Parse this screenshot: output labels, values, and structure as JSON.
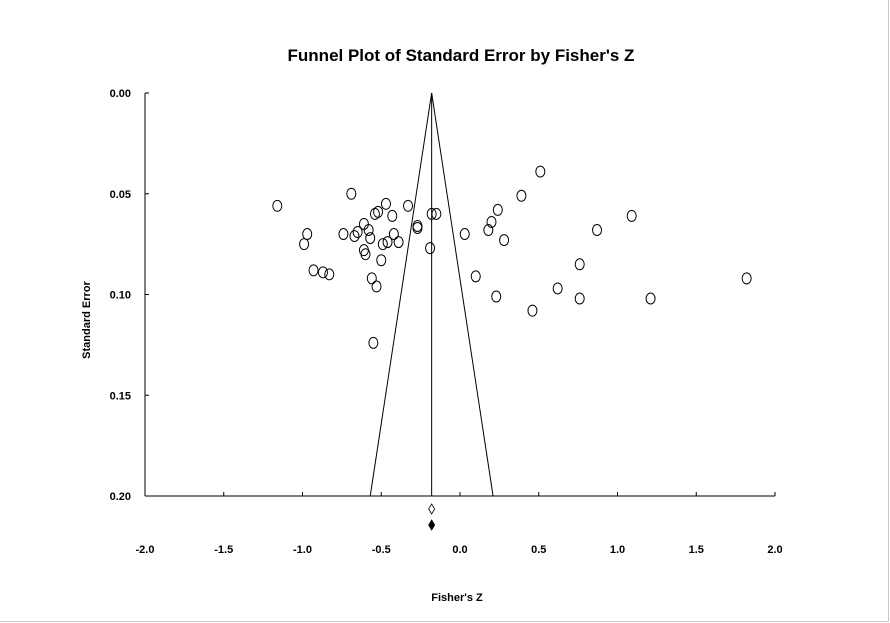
{
  "chart_data": {
    "type": "scatter",
    "title": "Funnel Plot of Standard Error by Fisher's Z",
    "xlabel": "Fisher's Z",
    "ylabel": "Standard Error",
    "xlim": [
      -2.0,
      2.0
    ],
    "ylim": [
      0.0,
      0.2
    ],
    "y_inverted": true,
    "x_ticks": [
      "-2.0",
      "-1.5",
      "-1.0",
      "-0.5",
      "0.0",
      "0.5",
      "1.0",
      "1.5",
      "2.0"
    ],
    "y_ticks": [
      "0.00",
      "0.05",
      "0.10",
      "0.15",
      "0.20"
    ],
    "summary_effect": -0.18,
    "funnel_limits_at_bottom": [
      -0.57,
      0.21
    ],
    "observed_summary_marker": -0.18,
    "adjusted_summary_marker": -0.18,
    "points": [
      {
        "x": -1.16,
        "y": 0.056
      },
      {
        "x": -0.99,
        "y": 0.075
      },
      {
        "x": -0.97,
        "y": 0.07
      },
      {
        "x": -0.93,
        "y": 0.088
      },
      {
        "x": -0.87,
        "y": 0.089
      },
      {
        "x": -0.83,
        "y": 0.09
      },
      {
        "x": -0.74,
        "y": 0.07
      },
      {
        "x": -0.69,
        "y": 0.05
      },
      {
        "x": -0.67,
        "y": 0.071
      },
      {
        "x": -0.65,
        "y": 0.069
      },
      {
        "x": -0.61,
        "y": 0.065
      },
      {
        "x": -0.61,
        "y": 0.078
      },
      {
        "x": -0.6,
        "y": 0.08
      },
      {
        "x": -0.58,
        "y": 0.068
      },
      {
        "x": -0.57,
        "y": 0.072
      },
      {
        "x": -0.56,
        "y": 0.092
      },
      {
        "x": -0.55,
        "y": 0.124
      },
      {
        "x": -0.54,
        "y": 0.06
      },
      {
        "x": -0.53,
        "y": 0.096
      },
      {
        "x": -0.52,
        "y": 0.059
      },
      {
        "x": -0.5,
        "y": 0.083
      },
      {
        "x": -0.49,
        "y": 0.075
      },
      {
        "x": -0.47,
        "y": 0.055
      },
      {
        "x": -0.46,
        "y": 0.074
      },
      {
        "x": -0.43,
        "y": 0.061
      },
      {
        "x": -0.42,
        "y": 0.07
      },
      {
        "x": -0.39,
        "y": 0.074
      },
      {
        "x": -0.33,
        "y": 0.056
      },
      {
        "x": -0.27,
        "y": 0.067
      },
      {
        "x": -0.27,
        "y": 0.066
      },
      {
        "x": -0.19,
        "y": 0.077
      },
      {
        "x": -0.18,
        "y": 0.06
      },
      {
        "x": -0.15,
        "y": 0.06
      },
      {
        "x": 0.03,
        "y": 0.07
      },
      {
        "x": 0.1,
        "y": 0.091
      },
      {
        "x": 0.18,
        "y": 0.068
      },
      {
        "x": 0.2,
        "y": 0.064
      },
      {
        "x": 0.23,
        "y": 0.101
      },
      {
        "x": 0.24,
        "y": 0.058
      },
      {
        "x": 0.28,
        "y": 0.073
      },
      {
        "x": 0.39,
        "y": 0.051
      },
      {
        "x": 0.46,
        "y": 0.108
      },
      {
        "x": 0.51,
        "y": 0.039
      },
      {
        "x": 0.62,
        "y": 0.097
      },
      {
        "x": 0.76,
        "y": 0.085
      },
      {
        "x": 0.76,
        "y": 0.102
      },
      {
        "x": 0.87,
        "y": 0.068
      },
      {
        "x": 1.09,
        "y": 0.061
      },
      {
        "x": 1.21,
        "y": 0.102
      },
      {
        "x": 1.82,
        "y": 0.092
      }
    ]
  }
}
